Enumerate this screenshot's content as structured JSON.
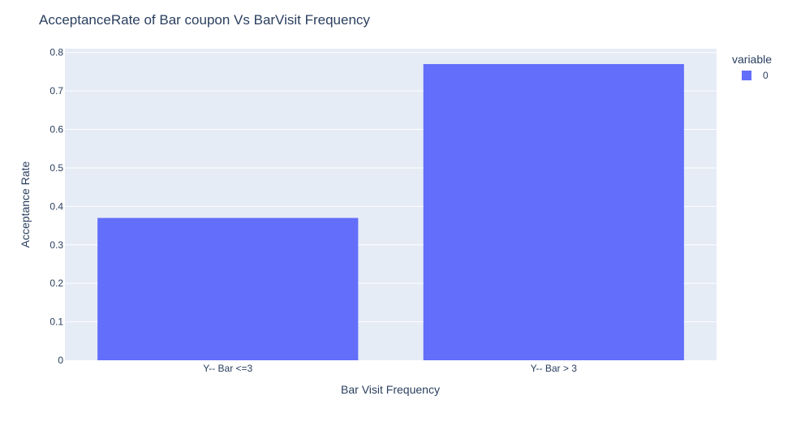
{
  "chart_data": {
    "type": "bar",
    "title": "AcceptanceRate of Bar coupon Vs BarVisit Frequency",
    "xlabel": "Bar Visit Frequency",
    "ylabel": "Acceptance Rate",
    "categories": [
      "Y-- Bar <=3",
      "Y-- Bar > 3"
    ],
    "series": [
      {
        "name": "0",
        "values": [
          0.37,
          0.77
        ]
      }
    ],
    "ylim": [
      0,
      0.81
    ],
    "yticks": [
      0,
      0.1,
      0.2,
      0.3,
      0.4,
      0.5,
      0.6,
      0.7,
      0.8
    ],
    "ytick_labels": [
      "0",
      "0.1",
      "0.2",
      "0.3",
      "0.4",
      "0.5",
      "0.6",
      "0.7",
      "0.8"
    ],
    "grid": true,
    "legend": {
      "title": "variable",
      "placement": "top-right"
    },
    "colors": {
      "bar": "#636efa",
      "plot_background": "#e5ecf6",
      "gridline": "#ffffff",
      "text": "#2a3f5f"
    }
  }
}
